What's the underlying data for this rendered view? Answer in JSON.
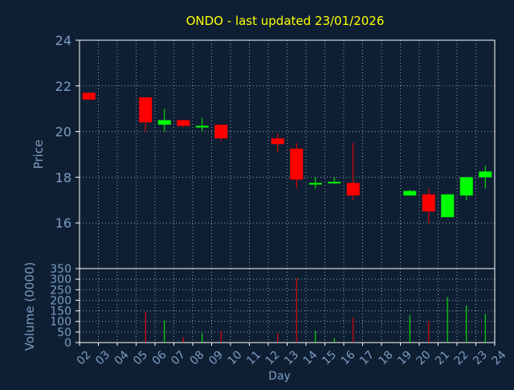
{
  "chart_data": {
    "type": "candlestick",
    "title": "ONDO - last updated 23/01/2026",
    "xlabel": "Day",
    "price_panel": {
      "ylabel": "Price",
      "ylim": [
        14,
        24
      ],
      "yticks": [
        "16",
        "18",
        "20",
        "22",
        "24"
      ],
      "grid": true
    },
    "volume_panel": {
      "ylabel": "Volume (0000)",
      "ylim": [
        0,
        350
      ],
      "yticks": [
        "0",
        "50",
        "100",
        "150",
        "200",
        "250",
        "300",
        "350"
      ],
      "grid": true
    },
    "x_tick_labels": [
      "02",
      "03",
      "04",
      "05",
      "06",
      "07",
      "08",
      "09",
      "10",
      "11",
      "12",
      "13",
      "14",
      "15",
      "16",
      "17",
      "18",
      "19",
      "20",
      "21",
      "22",
      "23",
      "24"
    ],
    "candles": [
      {
        "day": "02",
        "open": 21.7,
        "high": 21.7,
        "low": 21.4,
        "close": 21.4,
        "volume": 0
      },
      {
        "day": "05",
        "open": 21.5,
        "high": 21.5,
        "low": 20.0,
        "close": 20.4,
        "volume": 145
      },
      {
        "day": "06",
        "open": 20.3,
        "high": 21.0,
        "low": 20.0,
        "close": 20.5,
        "volume": 105
      },
      {
        "day": "07",
        "open": 20.5,
        "high": 20.5,
        "low": 20.2,
        "close": 20.25,
        "volume": 25
      },
      {
        "day": "08",
        "open": 20.2,
        "high": 20.6,
        "low": 20.0,
        "close": 20.25,
        "volume": 45
      },
      {
        "day": "09",
        "open": 20.3,
        "high": 20.3,
        "low": 19.6,
        "close": 19.7,
        "volume": 55
      },
      {
        "day": "12",
        "open": 19.7,
        "high": 19.9,
        "low": 19.1,
        "close": 19.45,
        "volume": 45
      },
      {
        "day": "13",
        "open": 19.25,
        "high": 19.5,
        "low": 17.5,
        "close": 17.9,
        "volume": 305
      },
      {
        "day": "14",
        "open": 17.7,
        "high": 18.0,
        "low": 17.5,
        "close": 17.75,
        "volume": 55
      },
      {
        "day": "15",
        "open": 17.75,
        "high": 18.0,
        "low": 17.7,
        "close": 17.8,
        "volume": 20
      },
      {
        "day": "16",
        "open": 17.75,
        "high": 19.5,
        "low": 17.0,
        "close": 17.2,
        "volume": 120
      },
      {
        "day": "19",
        "open": 17.2,
        "high": 17.45,
        "low": 17.2,
        "close": 17.4,
        "volume": 130
      },
      {
        "day": "20",
        "open": 17.25,
        "high": 17.5,
        "low": 16.0,
        "close": 16.5,
        "volume": 100
      },
      {
        "day": "21",
        "open": 16.25,
        "high": 17.25,
        "low": 16.25,
        "close": 17.25,
        "volume": 215
      },
      {
        "day": "22",
        "open": 17.2,
        "high": 18.0,
        "low": 17.0,
        "close": 18.0,
        "volume": 175
      },
      {
        "day": "23",
        "open": 18.0,
        "high": 18.5,
        "low": 17.5,
        "close": 18.25,
        "volume": 135
      }
    ],
    "colors": {
      "background": "#0f1f33",
      "title": "#ffff00",
      "label": "#7a9cc2",
      "axis": "#ffffff",
      "grid": "#8fa3bd",
      "up": "#00ff00",
      "down": "#ff0000"
    }
  }
}
